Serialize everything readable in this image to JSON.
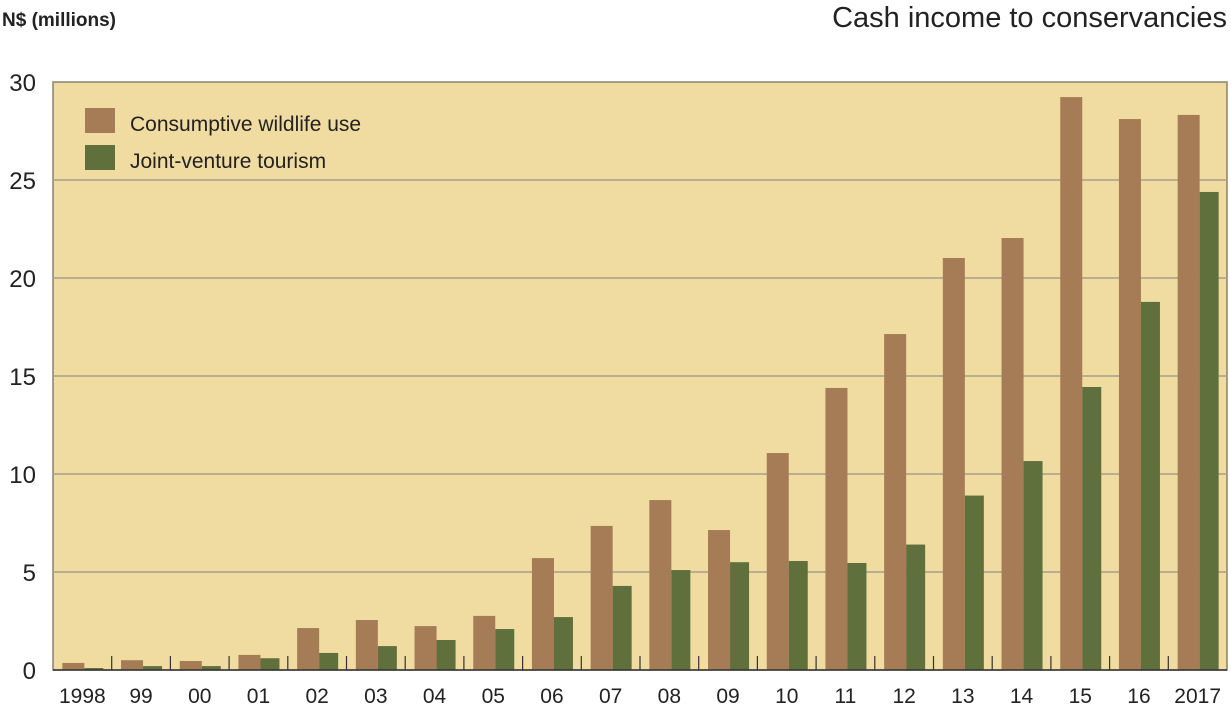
{
  "chart_data": {
    "type": "bar",
    "title": "Cash income to conservancies",
    "ylabel": "N$ (millions)",
    "xlabel": "",
    "ylim": [
      0,
      30
    ],
    "yticks": [
      0,
      5,
      10,
      15,
      20,
      25,
      30
    ],
    "grid": true,
    "legend_position": "top-left",
    "categories": [
      "1998",
      "99",
      "00",
      "01",
      "02",
      "03",
      "04",
      "05",
      "06",
      "07",
      "08",
      "09",
      "10",
      "11",
      "12",
      "13",
      "14",
      "15",
      "16",
      "2017"
    ],
    "series": [
      {
        "name": "Consumptive wildlife use",
        "color": "#a57c55",
        "values": [
          0.36,
          0.5,
          0.46,
          0.77,
          2.14,
          2.55,
          2.24,
          2.76,
          5.71,
          7.35,
          8.67,
          7.14,
          11.07,
          14.39,
          17.14,
          21.02,
          22.04,
          29.23,
          28.11,
          28.32
        ]
      },
      {
        "name": "Joint-venture tourism",
        "color": "#60703c",
        "values": [
          0.1,
          0.2,
          0.2,
          0.6,
          0.87,
          1.22,
          1.53,
          2.09,
          2.7,
          4.29,
          5.1,
          5.5,
          5.56,
          5.46,
          6.4,
          8.9,
          10.66,
          14.44,
          18.78,
          24.39
        ]
      }
    ],
    "background_color": "#f0dba0"
  }
}
